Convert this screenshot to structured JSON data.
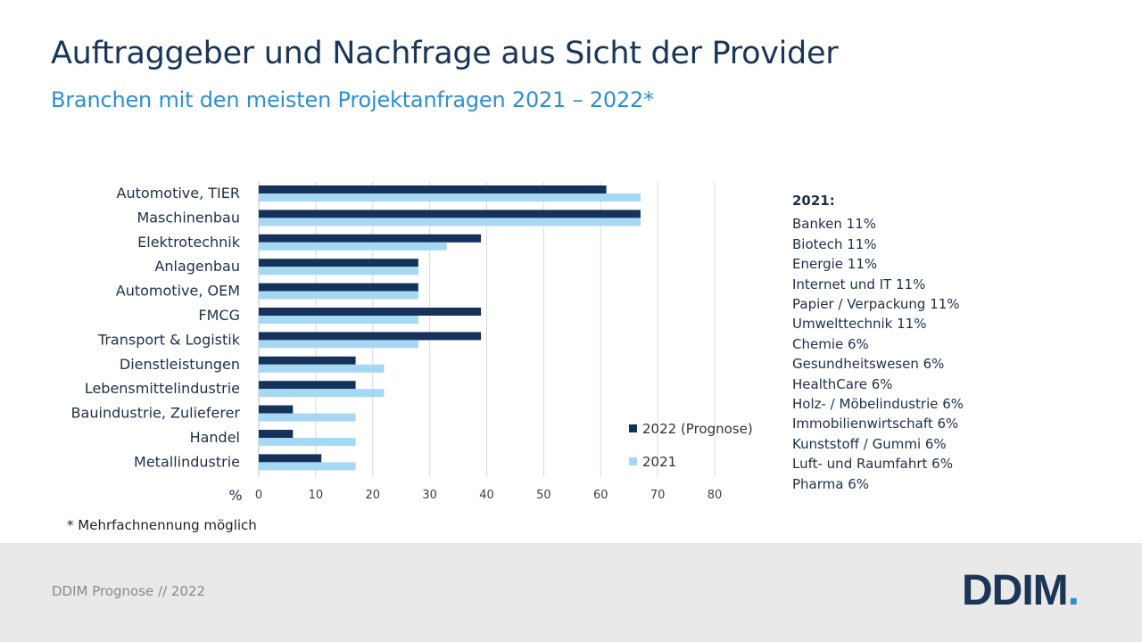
{
  "title": "Auftraggeber und Nachfrage aus Sicht der Provider",
  "subtitle": "Branchen mit den meisten Projektanfragen 2021 – 2022*",
  "chart_data": {
    "type": "bar",
    "orientation": "horizontal",
    "categories": [
      "Automotive, TIER",
      "Maschinenbau",
      "Elektrotechnik",
      "Anlagenbau",
      "Automotive, OEM",
      "FMCG",
      "Transport & Logistik",
      "Dienstleistungen",
      "Lebensmittelindustrie",
      "Bauindustrie, Zulieferer",
      "Handel",
      "Metallindustrie"
    ],
    "series": [
      {
        "name": "2022 (Prognose)",
        "color": "#15325a",
        "values": [
          61,
          67,
          39,
          28,
          28,
          39,
          39,
          17,
          17,
          6,
          6,
          11
        ]
      },
      {
        "name": "2021",
        "color": "#a6d8f3",
        "values": [
          67,
          67,
          33,
          28,
          28,
          28,
          28,
          22,
          22,
          17,
          17,
          17
        ]
      }
    ],
    "xlim": [
      0,
      80
    ],
    "xticks": [
      0,
      10,
      20,
      30,
      40,
      50,
      60,
      70,
      80
    ],
    "xlabel": "%",
    "grid": true
  },
  "legend": {
    "items": [
      {
        "label": "2022 (Prognose)",
        "color": "#15325a"
      },
      {
        "label": "2021",
        "color": "#a6d8f3"
      }
    ]
  },
  "notes": {
    "heading": "2021:",
    "items": [
      "Banken 11%",
      "Biotech 11%",
      "Energie 11%",
      "Internet und IT 11%",
      "Papier / Verpackung 11%",
      "Umwelttechnik 11%",
      "Chemie 6%",
      "Gesundheitswesen 6%",
      "HealthCare 6%",
      "Holz- / Möbelindustrie 6%",
      "Immobilienwirtschaft 6%",
      "Kunststoff / Gummi 6%",
      "Luft- und Raumfahrt 6%",
      "Pharma 6%"
    ]
  },
  "footnote": "* Mehrfachnennung möglich",
  "footer": {
    "text": "DDIM Prognose // 2022",
    "logo_text": "DDIM",
    "logo_dot": "."
  }
}
